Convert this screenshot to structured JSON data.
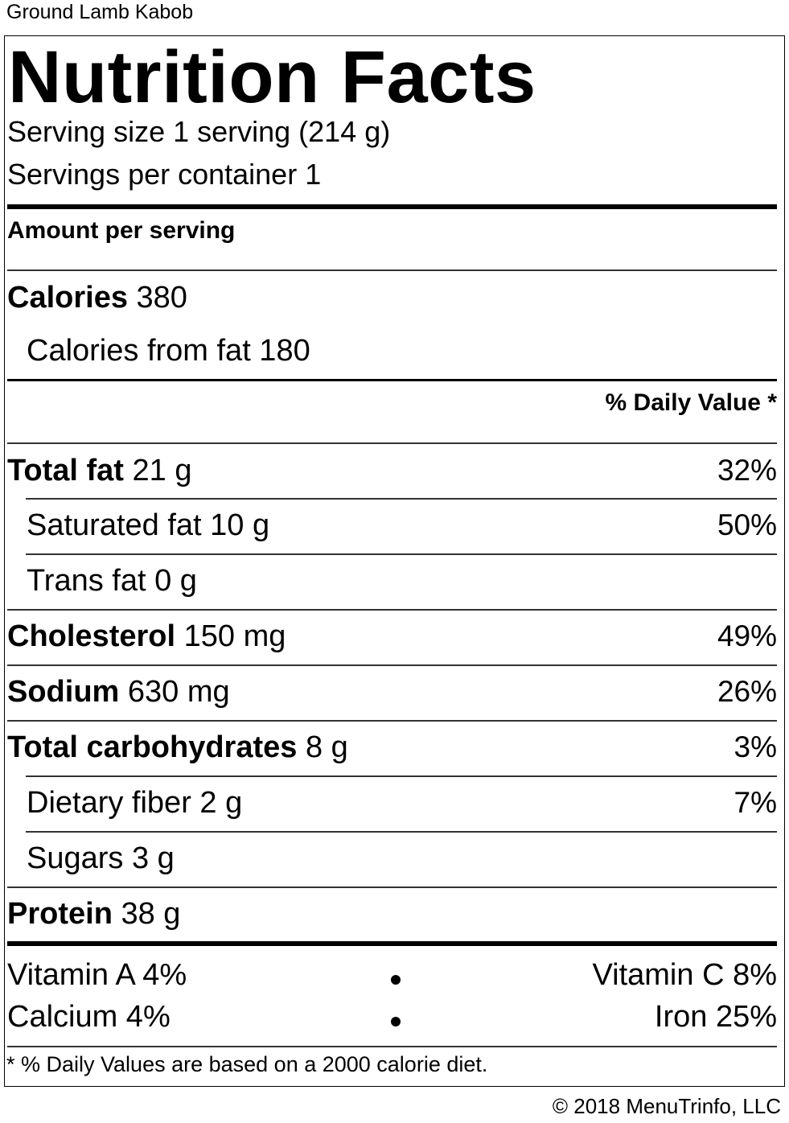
{
  "dish_name": "Ground Lamb Kabob",
  "title": "Nutrition Facts",
  "serving_size": "Serving size 1 serving (214 g)",
  "servings_per_container": "Servings per container 1",
  "amount_per_serving": "Amount per serving",
  "calories": {
    "label": "Calories",
    "value": "380"
  },
  "calories_from_fat": "Calories from fat 180",
  "daily_value_header": "% Daily Value *",
  "nutrients": {
    "total_fat": {
      "label": "Total fat",
      "amount": "21 g",
      "dv": "32%"
    },
    "saturated_fat": {
      "label": "Saturated fat",
      "amount": "10 g",
      "dv": "50%"
    },
    "trans_fat": {
      "label": "Trans fat",
      "amount": "0 g"
    },
    "cholesterol": {
      "label": "Cholesterol",
      "amount": "150 mg",
      "dv": "49%"
    },
    "sodium": {
      "label": "Sodium",
      "amount": "630 mg",
      "dv": "26%"
    },
    "total_carbohydrates": {
      "label": "Total carbohydrates",
      "amount": "8 g",
      "dv": "3%"
    },
    "dietary_fiber": {
      "label": "Dietary fiber",
      "amount": "2 g",
      "dv": "7%"
    },
    "sugars": {
      "label": "Sugars",
      "amount": "3 g"
    },
    "protein": {
      "label": "Protein",
      "amount": "38 g"
    }
  },
  "vitamins": {
    "vitamin_a": "Vitamin A 4%",
    "vitamin_c": "Vitamin C 8%",
    "calcium": "Calcium 4%",
    "iron": "Iron 25%"
  },
  "footnote": "* % Daily Values are based on a 2000 calorie diet.",
  "copyright": "© 2018 MenuTrinfo, LLC"
}
